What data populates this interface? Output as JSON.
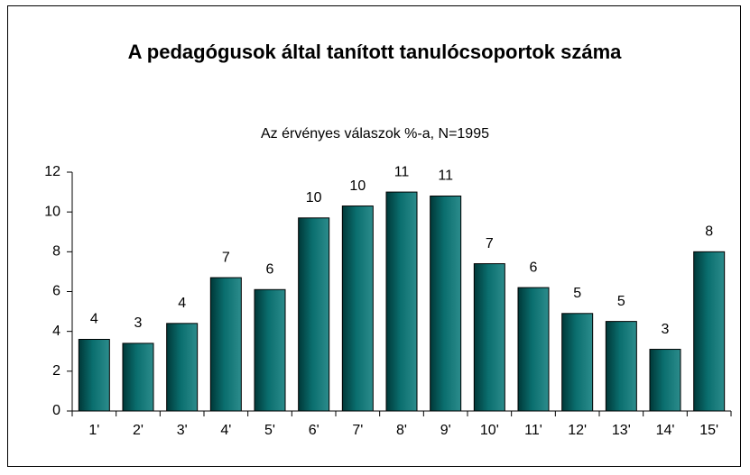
{
  "chart_data": {
    "type": "bar",
    "title": "A pedagógusok által tanított tanulócsoportok száma",
    "subtitle": "Az érvényes válaszok %-a, N=1995",
    "categories": [
      "1'",
      "2'",
      "3'",
      "4'",
      "5'",
      "6'",
      "7'",
      "8'",
      "9'",
      "10'",
      "11'",
      "12'",
      "13'",
      "14'",
      "15'"
    ],
    "values": [
      3.6,
      3.4,
      4.4,
      6.7,
      6.1,
      9.7,
      10.3,
      11.0,
      10.8,
      7.4,
      6.2,
      4.9,
      4.5,
      3.1,
      8.0
    ],
    "value_labels": [
      "4",
      "3",
      "4",
      "7",
      "6",
      "10",
      "10",
      "11",
      "11",
      "7",
      "6",
      "5",
      "5",
      "3",
      "8"
    ],
    "color": "#006666",
    "ylim": [
      0,
      12
    ],
    "yticks": [
      0,
      2,
      4,
      6,
      8,
      10,
      12
    ],
    "grid": false
  }
}
